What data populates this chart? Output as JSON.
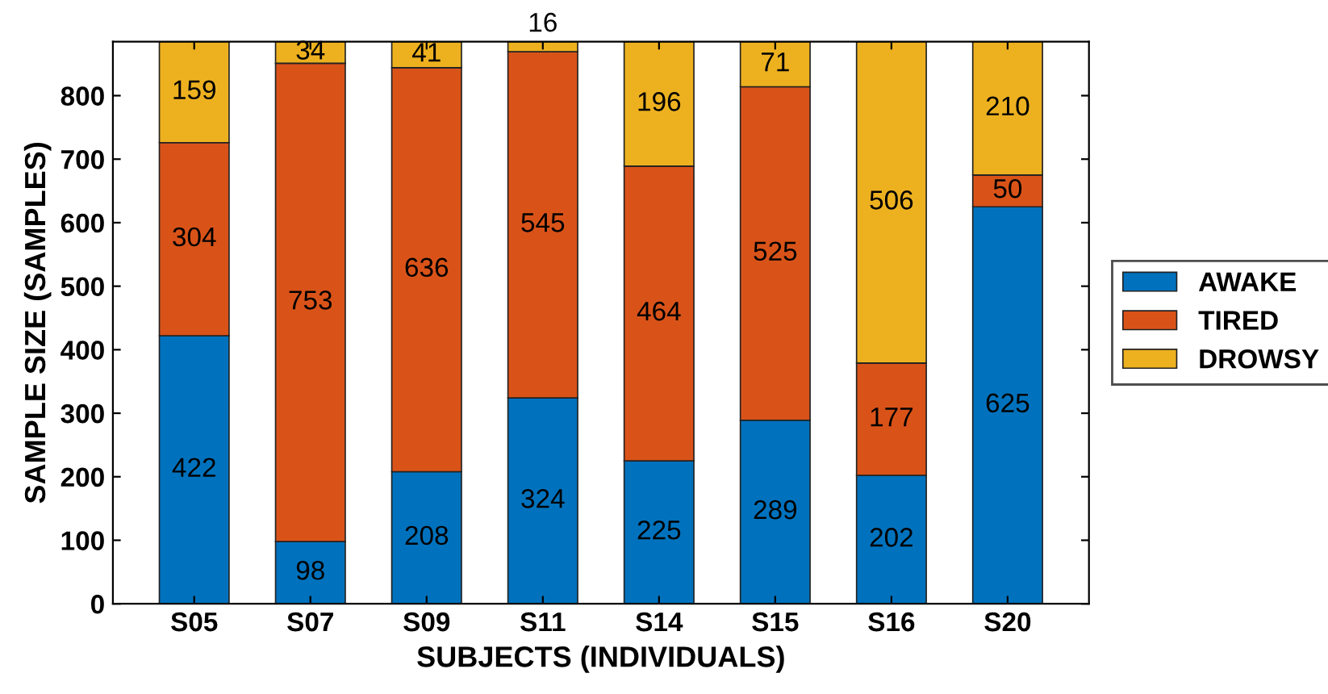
{
  "chart_data": {
    "type": "bar",
    "stacked": true,
    "xlabel": "SUBJECTS (INDIVIDUALS)",
    "ylabel": "SAMPLE SIZE (SAMPLES)",
    "categories": [
      "S05",
      "S07",
      "S09",
      "S11",
      "S14",
      "S15",
      "S16",
      "S20"
    ],
    "series": [
      {
        "name": "AWAKE",
        "color": "#0072bd",
        "values": [
          422,
          98,
          208,
          324,
          225,
          289,
          202,
          625
        ]
      },
      {
        "name": "TIRED",
        "color": "#d95319",
        "values": [
          304,
          753,
          636,
          545,
          464,
          525,
          177,
          50
        ]
      },
      {
        "name": "DROWSY",
        "color": "#edb120",
        "values": [
          159,
          34,
          41,
          16,
          196,
          71,
          506,
          210
        ]
      }
    ],
    "ylim": [
      0,
      885
    ],
    "yticks": [
      0,
      100,
      200,
      300,
      400,
      500,
      600,
      700,
      800
    ],
    "data_labels": true,
    "legend": "right",
    "grid": false
  }
}
